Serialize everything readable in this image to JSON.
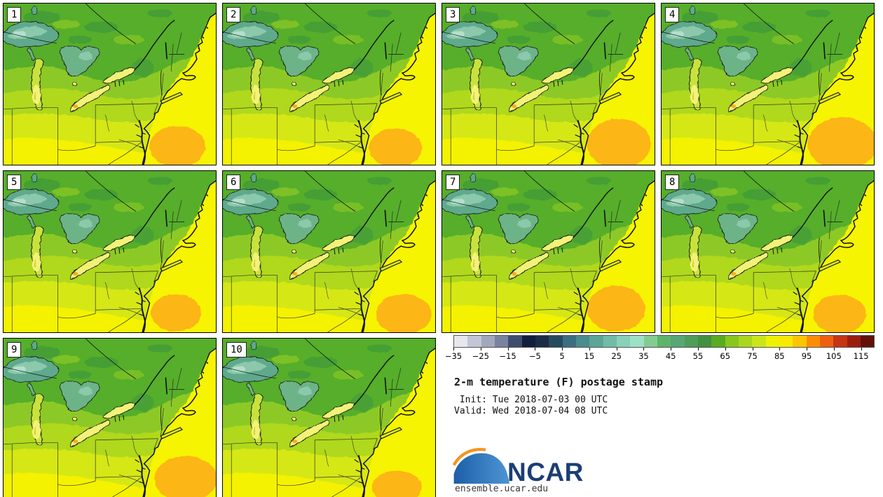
{
  "panels": [
    {
      "label": "1"
    },
    {
      "label": "2"
    },
    {
      "label": "3"
    },
    {
      "label": "4"
    },
    {
      "label": "5"
    },
    {
      "label": "6"
    },
    {
      "label": "7"
    },
    {
      "label": "8"
    },
    {
      "label": "9"
    },
    {
      "label": "10"
    }
  ],
  "colorbar": {
    "min": -35,
    "max": 120,
    "tick_values": [
      -35,
      -25,
      -15,
      -5,
      5,
      15,
      25,
      35,
      45,
      55,
      65,
      75,
      85,
      95,
      105,
      115
    ],
    "tick_labels": [
      "−35",
      "−25",
      "−15",
      "−5",
      "5",
      "15",
      "25",
      "35",
      "45",
      "55",
      "65",
      "75",
      "85",
      "95",
      "105",
      "115"
    ],
    "colors": [
      "#e6e6ec",
      "#c3c5d6",
      "#a3a7bb",
      "#79839e",
      "#3e4c70",
      "#131e3c",
      "#1b2d44",
      "#264a5e",
      "#3b6e80",
      "#4b8c8e",
      "#5ba697",
      "#70bca7",
      "#88d0b8",
      "#9ee0c6",
      "#82cc91",
      "#5eb46a",
      "#56a775",
      "#4f9d58",
      "#419141",
      "#59ab21",
      "#88c720",
      "#aad61e",
      "#cbe51b",
      "#eef006",
      "#f6ea00",
      "#fbc500",
      "#fb8d05",
      "#ee5f10",
      "#c53514",
      "#9a1e0e",
      "#62100a"
    ]
  },
  "info": {
    "title": "2-m temperature (F) postage stamp",
    "init_line": " Init: Tue 2018-07-03 00 UTC",
    "valid_line": "Valid: Wed 2018-07-04 08 UTC"
  },
  "branding": {
    "logo_text": "NCAR",
    "site": "ensemble.ucar.edu",
    "logo_blue": "#1d5fa8",
    "logo_blue_light": "#4e95d4",
    "logo_orange": "#f69321",
    "logo_text_color": "#1b3e74"
  },
  "map_palette": {
    "land_base": "#d6e714",
    "land_mid": "#b0d81c",
    "band_light_green": "#8dc926",
    "canada_green": "#57ae29",
    "canada_dark_green": "#459f36",
    "south_yellow": "#f4f203",
    "atlantic_yellow": "#f6f400",
    "ocean_warm_orange": "#fcb616",
    "lake_cold_teal": "#5fa98c",
    "lake_teal_light": "#8cc8ab",
    "lake_teal_lighter": "#b2e0cc",
    "lake_huron_teal": "#6db388",
    "lake_warm_pale": "#f2f278",
    "erie_orange_spot": "#fbab1a",
    "michigan_fill": "#c8e23c",
    "long_island_fill": "#d8e81c"
  }
}
